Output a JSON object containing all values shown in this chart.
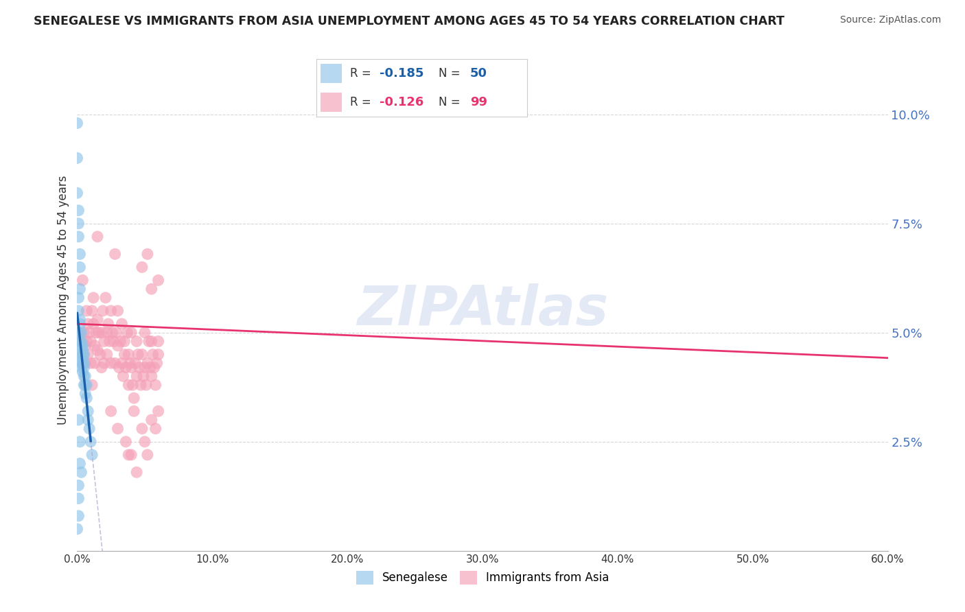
{
  "title": "SENEGALESE VS IMMIGRANTS FROM ASIA UNEMPLOYMENT AMONG AGES 45 TO 54 YEARS CORRELATION CHART",
  "source": "Source: ZipAtlas.com",
  "ylabel": "Unemployment Among Ages 45 to 54 years",
  "legend_labels": [
    "Senegalese",
    "Immigrants from Asia"
  ],
  "watermark": "ZIPAtlas",
  "senegalese_color": "#90c4e8",
  "asia_color": "#f4a0b8",
  "trend_senegalese_color": "#1a5fa8",
  "trend_asia_color": "#e8326e",
  "background_color": "#ffffff",
  "grid_color": "#cccccc",
  "R_senegalese": -0.185,
  "N_senegalese": 50,
  "R_asia": -0.126,
  "N_asia": 99,
  "xlim": [
    0.0,
    0.6
  ],
  "ylim": [
    0.0,
    0.115
  ],
  "xtick_vals": [
    0.0,
    0.1,
    0.2,
    0.3,
    0.4,
    0.5,
    0.6
  ],
  "ytick_vals": [
    0.025,
    0.05,
    0.075,
    0.1
  ],
  "senegalese_points": [
    [
      0.0,
      0.098
    ],
    [
      0.0,
      0.09
    ],
    [
      0.0,
      0.082
    ],
    [
      0.001,
      0.078
    ],
    [
      0.001,
      0.072
    ],
    [
      0.001,
      0.075
    ],
    [
      0.002,
      0.068
    ],
    [
      0.002,
      0.065
    ],
    [
      0.002,
      0.06
    ],
    [
      0.001,
      0.055
    ],
    [
      0.001,
      0.058
    ],
    [
      0.002,
      0.053
    ],
    [
      0.002,
      0.05
    ],
    [
      0.002,
      0.048
    ],
    [
      0.002,
      0.052
    ],
    [
      0.003,
      0.047
    ],
    [
      0.003,
      0.045
    ],
    [
      0.003,
      0.043
    ],
    [
      0.003,
      0.048
    ],
    [
      0.003,
      0.05
    ],
    [
      0.003,
      0.042
    ],
    [
      0.004,
      0.047
    ],
    [
      0.004,
      0.045
    ],
    [
      0.004,
      0.043
    ],
    [
      0.004,
      0.046
    ],
    [
      0.004,
      0.044
    ],
    [
      0.004,
      0.041
    ],
    [
      0.005,
      0.043
    ],
    [
      0.005,
      0.04
    ],
    [
      0.005,
      0.042
    ],
    [
      0.005,
      0.038
    ],
    [
      0.005,
      0.045
    ],
    [
      0.006,
      0.04
    ],
    [
      0.006,
      0.038
    ],
    [
      0.006,
      0.036
    ],
    [
      0.007,
      0.035
    ],
    [
      0.007,
      0.038
    ],
    [
      0.008,
      0.032
    ],
    [
      0.008,
      0.03
    ],
    [
      0.009,
      0.028
    ],
    [
      0.01,
      0.025
    ],
    [
      0.011,
      0.022
    ],
    [
      0.001,
      0.015
    ],
    [
      0.001,
      0.012
    ],
    [
      0.002,
      0.02
    ],
    [
      0.001,
      0.008
    ],
    [
      0.002,
      0.025
    ],
    [
      0.0,
      0.005
    ],
    [
      0.001,
      0.03
    ],
    [
      0.003,
      0.018
    ]
  ],
  "asia_points": [
    [
      0.002,
      0.05
    ],
    [
      0.003,
      0.048
    ],
    [
      0.004,
      0.062
    ],
    [
      0.005,
      0.05
    ],
    [
      0.005,
      0.045
    ],
    [
      0.006,
      0.047
    ],
    [
      0.006,
      0.043
    ],
    [
      0.007,
      0.055
    ],
    [
      0.007,
      0.048
    ],
    [
      0.008,
      0.052
    ],
    [
      0.008,
      0.045
    ],
    [
      0.009,
      0.05
    ],
    [
      0.01,
      0.048
    ],
    [
      0.01,
      0.043
    ],
    [
      0.011,
      0.055
    ],
    [
      0.011,
      0.038
    ],
    [
      0.012,
      0.058
    ],
    [
      0.012,
      0.052
    ],
    [
      0.013,
      0.047
    ],
    [
      0.013,
      0.043
    ],
    [
      0.014,
      0.05
    ],
    [
      0.015,
      0.053
    ],
    [
      0.015,
      0.046
    ],
    [
      0.016,
      0.05
    ],
    [
      0.017,
      0.045
    ],
    [
      0.018,
      0.05
    ],
    [
      0.018,
      0.042
    ],
    [
      0.019,
      0.055
    ],
    [
      0.02,
      0.048
    ],
    [
      0.02,
      0.043
    ],
    [
      0.021,
      0.058
    ],
    [
      0.022,
      0.05
    ],
    [
      0.022,
      0.045
    ],
    [
      0.023,
      0.052
    ],
    [
      0.024,
      0.048
    ],
    [
      0.025,
      0.055
    ],
    [
      0.025,
      0.043
    ],
    [
      0.026,
      0.05
    ],
    [
      0.027,
      0.048
    ],
    [
      0.028,
      0.043
    ],
    [
      0.029,
      0.05
    ],
    [
      0.03,
      0.055
    ],
    [
      0.03,
      0.047
    ],
    [
      0.031,
      0.042
    ],
    [
      0.032,
      0.048
    ],
    [
      0.033,
      0.052
    ],
    [
      0.033,
      0.043
    ],
    [
      0.034,
      0.04
    ],
    [
      0.035,
      0.048
    ],
    [
      0.035,
      0.045
    ],
    [
      0.036,
      0.042
    ],
    [
      0.037,
      0.05
    ],
    [
      0.038,
      0.045
    ],
    [
      0.038,
      0.038
    ],
    [
      0.039,
      0.043
    ],
    [
      0.04,
      0.05
    ],
    [
      0.04,
      0.042
    ],
    [
      0.041,
      0.038
    ],
    [
      0.042,
      0.035
    ],
    [
      0.043,
      0.043
    ],
    [
      0.044,
      0.048
    ],
    [
      0.044,
      0.04
    ],
    [
      0.045,
      0.045
    ],
    [
      0.046,
      0.042
    ],
    [
      0.047,
      0.038
    ],
    [
      0.048,
      0.045
    ],
    [
      0.049,
      0.04
    ],
    [
      0.05,
      0.05
    ],
    [
      0.05,
      0.042
    ],
    [
      0.051,
      0.038
    ],
    [
      0.052,
      0.043
    ],
    [
      0.053,
      0.048
    ],
    [
      0.054,
      0.042
    ],
    [
      0.055,
      0.048
    ],
    [
      0.055,
      0.04
    ],
    [
      0.056,
      0.045
    ],
    [
      0.057,
      0.042
    ],
    [
      0.058,
      0.038
    ],
    [
      0.059,
      0.043
    ],
    [
      0.06,
      0.048
    ],
    [
      0.015,
      0.072
    ],
    [
      0.028,
      0.068
    ],
    [
      0.048,
      0.065
    ],
    [
      0.052,
      0.068
    ],
    [
      0.055,
      0.06
    ],
    [
      0.06,
      0.062
    ],
    [
      0.036,
      0.025
    ],
    [
      0.04,
      0.022
    ],
    [
      0.048,
      0.028
    ],
    [
      0.055,
      0.03
    ],
    [
      0.042,
      0.032
    ],
    [
      0.05,
      0.025
    ],
    [
      0.025,
      0.032
    ],
    [
      0.03,
      0.028
    ],
    [
      0.038,
      0.022
    ],
    [
      0.044,
      0.018
    ],
    [
      0.052,
      0.022
    ],
    [
      0.058,
      0.028
    ],
    [
      0.06,
      0.032
    ],
    [
      0.06,
      0.045
    ]
  ]
}
